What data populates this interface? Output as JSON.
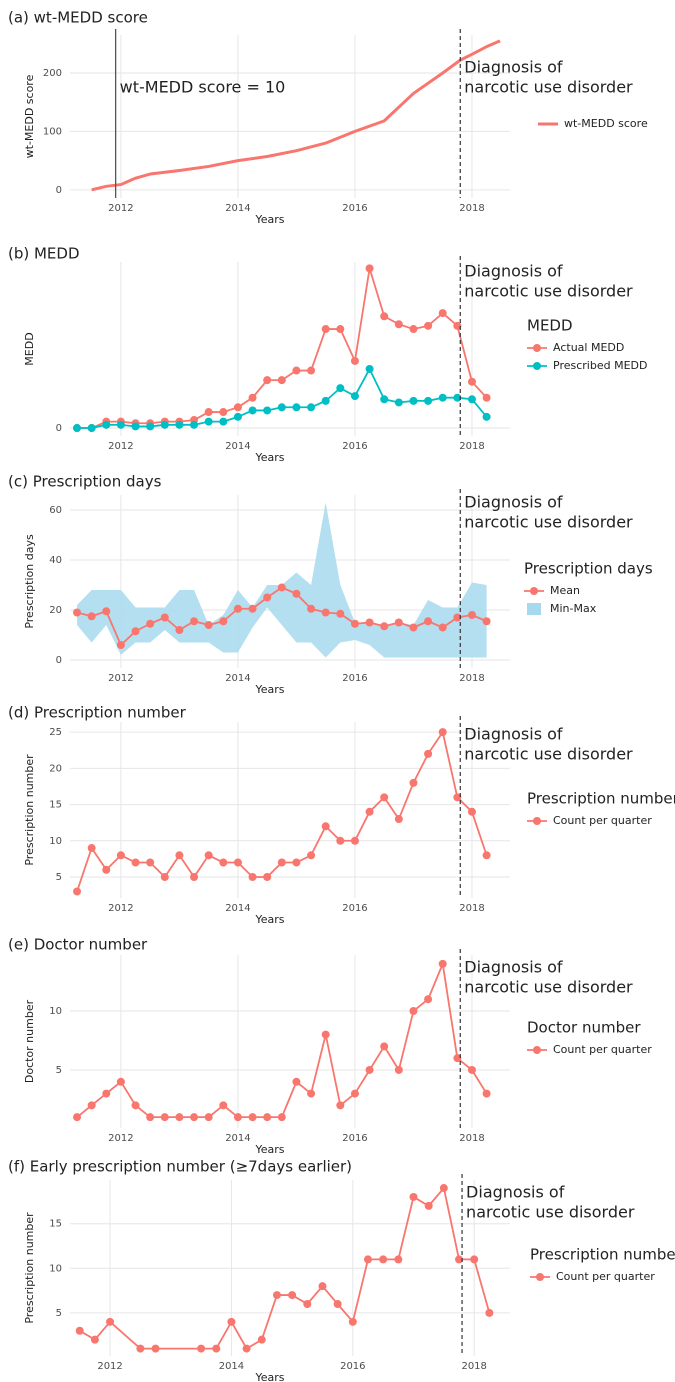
{
  "chart_data": [
    {
      "type": "line",
      "title": "(a) wt-MEDD score",
      "x_label": "Years",
      "y_label": "wt-MEDD score",
      "x": [
        2011.5,
        2011.75,
        2012,
        2012.25,
        2012.5,
        2013,
        2013.5,
        2014,
        2014.5,
        2015,
        2015.5,
        2016,
        2016.5,
        2017,
        2017.5,
        2017.8,
        2018,
        2018.25,
        2018.48
      ],
      "xlim": [
        2011.13,
        2018.65
      ],
      "xticks": [
        2012,
        2014,
        2016,
        2018
      ],
      "ylim": [
        -14,
        265
      ],
      "yticks": [
        0,
        100,
        200
      ],
      "grid": true,
      "legend": "right",
      "series": [
        {
          "name": "wt-MEDD score",
          "color": "#f8766d",
          "markers": false,
          "values": [
            0,
            6,
            9,
            20,
            27,
            33,
            40,
            50,
            57,
            67,
            80,
            100,
            118,
            165,
            200,
            222,
            232,
            245,
            255
          ]
        }
      ],
      "vlines": [
        {
          "x": 2011.91,
          "style": "solid",
          "label": [
            "wt-MEDD score = 10"
          ]
        },
        {
          "x": 2017.8,
          "style": "dashed",
          "label": [
            "Diagnosis of",
            "narcotic use disorder"
          ]
        }
      ]
    },
    {
      "type": "line",
      "title": "(b) MEDD",
      "x_label": "Years",
      "y_label": "MEDD",
      "x": [
        2011.25,
        2011.5,
        2011.75,
        2012,
        2012.25,
        2012.5,
        2012.75,
        2013,
        2013.25,
        2013.5,
        2013.75,
        2014,
        2014.25,
        2014.5,
        2014.75,
        2015,
        2015.25,
        2015.5,
        2015.75,
        2016,
        2016.25,
        2016.5,
        2016.75,
        2017,
        2017.25,
        2017.5,
        2017.75,
        2018,
        2018.25
      ],
      "xlim": [
        2011.13,
        2018.65
      ],
      "xticks": [
        2012,
        2014,
        2016,
        2018
      ],
      "ylim": [
        -5,
        104
      ],
      "yticks": [
        0
      ],
      "grid": true,
      "legend": "right",
      "legend_title": "MEDD",
      "series": [
        {
          "name": "Actual MEDD",
          "color": "#f8766d",
          "markers": true,
          "values": [
            0,
            0,
            4,
            4,
            3,
            3,
            4,
            4,
            5,
            10,
            10,
            13,
            19,
            30,
            30,
            36,
            36,
            62,
            62,
            42,
            100,
            70,
            65,
            62,
            64,
            72,
            64,
            29,
            19
          ]
        },
        {
          "name": "Prescribed MEDD",
          "color": "#00bfc4",
          "markers": true,
          "values": [
            0,
            0,
            2,
            2,
            1,
            1,
            2,
            2,
            2,
            4,
            4,
            7,
            11,
            11,
            13,
            13,
            13,
            17,
            25,
            20,
            37,
            18,
            16,
            17,
            17,
            19,
            19,
            18,
            7
          ]
        }
      ],
      "vlines": [
        {
          "x": 2017.8,
          "style": "dashed",
          "label": [
            "Diagnosis of",
            "narcotic use disorder"
          ]
        }
      ]
    },
    {
      "type": "line",
      "title": "(c) Prescription days",
      "x_label": "Years",
      "y_label": "Prescription days",
      "x": [
        2011.25,
        2011.5,
        2011.75,
        2012,
        2012.25,
        2012.5,
        2012.75,
        2013,
        2013.25,
        2013.5,
        2013.75,
        2014,
        2014.25,
        2014.5,
        2014.75,
        2015,
        2015.25,
        2015.5,
        2015.75,
        2016,
        2016.25,
        2016.5,
        2016.75,
        2017,
        2017.25,
        2017.5,
        2017.75,
        2018,
        2018.25
      ],
      "xlim": [
        2011.13,
        2018.65
      ],
      "xticks": [
        2012,
        2014,
        2016,
        2018
      ],
      "ylim": [
        -3.2,
        66
      ],
      "yticks": [
        0,
        20,
        40,
        60
      ],
      "grid": true,
      "legend": "right",
      "legend_title": "Prescription days",
      "series": [
        {
          "name": "Mean",
          "color": "#f8766d",
          "markers": true,
          "values": [
            19,
            17.5,
            19.5,
            6,
            11.5,
            14.5,
            17,
            12,
            15.5,
            14,
            15.5,
            20.5,
            20.5,
            25,
            29,
            26.5,
            20.5,
            19,
            18.5,
            14.5,
            15,
            13.5,
            15,
            13,
            15.5,
            13,
            17,
            18,
            15.5
          ]
        },
        {
          "name": "Min-Max",
          "color": "#a6d9ee",
          "lower": [
            14,
            7,
            14,
            2,
            7,
            7,
            12,
            7,
            7,
            7,
            3,
            3,
            13,
            21,
            14,
            7,
            7,
            1,
            7,
            8,
            6,
            1,
            1,
            1,
            1,
            1,
            1,
            1,
            1
          ],
          "upper": [
            22,
            28,
            28,
            28,
            21,
            21,
            21,
            28,
            28,
            14,
            18,
            28,
            21,
            30,
            30,
            35,
            30,
            63,
            30,
            15,
            15,
            14,
            15,
            14,
            24,
            21,
            21,
            31,
            30
          ]
        }
      ],
      "vlines": [
        {
          "x": 2017.8,
          "style": "dashed",
          "label": [
            "Diagnosis of",
            "narcotic use disorder"
          ]
        }
      ]
    },
    {
      "type": "line",
      "title": "(d) Prescription number",
      "x_label": "Years",
      "y_label": "Prescription number",
      "x": [
        2011.25,
        2011.5,
        2011.75,
        2012,
        2012.25,
        2012.5,
        2012.75,
        2013,
        2013.25,
        2013.5,
        2013.75,
        2014,
        2014.25,
        2014.5,
        2014.75,
        2015,
        2015.25,
        2015.5,
        2015.75,
        2016,
        2016.25,
        2016.5,
        2016.75,
        2017,
        2017.25,
        2017.5,
        2017.75,
        2018,
        2018.25
      ],
      "xlim": [
        2011.13,
        2018.65
      ],
      "xticks": [
        2012,
        2014,
        2016,
        2018
      ],
      "ylim": [
        2.1,
        26.4
      ],
      "yticks": [
        5,
        10,
        15,
        20,
        25
      ],
      "grid": true,
      "legend": "right",
      "legend_title": "Prescription number",
      "series": [
        {
          "name": "Count per quarter",
          "color": "#f8766d",
          "markers": true,
          "values": [
            3,
            9,
            6,
            8,
            7,
            7,
            5,
            8,
            5,
            8,
            7,
            7,
            5,
            5,
            7,
            7,
            8,
            12,
            10,
            10,
            14,
            16,
            13,
            18,
            22,
            25,
            16,
            14,
            8
          ]
        }
      ],
      "vlines": [
        {
          "x": 2017.8,
          "style": "dashed",
          "label": [
            "Diagnosis of",
            "narcotic use disorder"
          ]
        }
      ]
    },
    {
      "type": "line",
      "title": "(e) Doctor number",
      "x_label": "Years",
      "y_label": "Doctor number",
      "x": [
        2011.25,
        2011.5,
        2011.75,
        2012,
        2012.25,
        2012.5,
        2012.75,
        2013,
        2013.25,
        2013.5,
        2013.75,
        2014,
        2014.25,
        2014.5,
        2014.75,
        2015,
        2015.25,
        2015.5,
        2015.75,
        2016,
        2016.25,
        2016.5,
        2016.75,
        2017,
        2017.25,
        2017.5,
        2017.75,
        2018,
        2018.25
      ],
      "xlim": [
        2011.13,
        2018.65
      ],
      "xticks": [
        2012,
        2014,
        2016,
        2018
      ],
      "ylim": [
        0.08,
        14.75
      ],
      "yticks": [
        5,
        10
      ],
      "grid": true,
      "legend": "right",
      "legend_title": "Doctor number",
      "series": [
        {
          "name": "Count per quarter",
          "color": "#f8766d",
          "markers": true,
          "values": [
            1,
            2,
            3,
            4,
            2,
            1,
            1,
            1,
            1,
            1,
            2,
            1,
            1,
            1,
            1,
            4,
            3,
            8,
            2,
            3,
            5,
            7,
            5,
            10,
            11,
            14,
            6,
            5,
            3
          ]
        }
      ],
      "vlines": [
        {
          "x": 2017.8,
          "style": "dashed",
          "label": [
            "Diagnosis of",
            "narcotic use disorder"
          ]
        }
      ]
    },
    {
      "type": "line",
      "title": "(f) Early prescription number (≥7days earlier)",
      "x_label": "Years",
      "y_label": "Prescription number",
      "x": [
        2011.5,
        2011.75,
        2012,
        2012.5,
        2012.75,
        2013.5,
        2013.75,
        2014,
        2014.25,
        2014.5,
        2014.75,
        2015,
        2015.25,
        2015.5,
        2015.75,
        2016,
        2016.25,
        2016.5,
        2016.75,
        2017,
        2017.25,
        2017.5,
        2017.75,
        2018,
        2018.25
      ],
      "xlim": [
        2011.34,
        2018.59
      ],
      "xticks": [
        2012,
        2014,
        2016,
        2018
      ],
      "ylim": [
        0.17,
        19.9
      ],
      "yticks": [
        5,
        10,
        15
      ],
      "grid": true,
      "legend": "right",
      "legend_title": "Prescription number",
      "series": [
        {
          "name": "Count per quarter",
          "color": "#f8766d",
          "markers": true,
          "values": [
            3,
            2,
            4,
            1,
            1,
            1,
            1,
            4,
            1,
            2,
            7,
            7,
            6,
            8,
            6,
            4,
            11,
            11,
            11,
            18,
            17,
            19,
            11,
            11,
            5
          ]
        }
      ],
      "vlines": [
        {
          "x": 2017.8,
          "style": "dashed",
          "label": [
            "Diagnosis of",
            "narcotic use disorder"
          ]
        }
      ]
    }
  ]
}
